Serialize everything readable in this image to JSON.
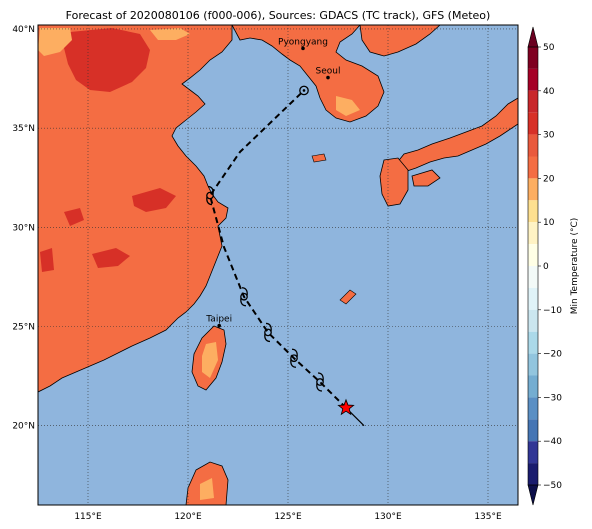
{
  "title": "Forecast of 2020080106 (f000-006), Sources: GDACS (TC track), GFS (Meteo)",
  "map": {
    "lon_range": [
      112.5,
      136.5
    ],
    "lat_range": [
      16.0,
      40.2
    ],
    "lon_ticks": [
      {
        "value": 115,
        "label": "115°E"
      },
      {
        "value": 120,
        "label": "120°E"
      },
      {
        "value": 125,
        "label": "125°E"
      },
      {
        "value": 130,
        "label": "130°E"
      },
      {
        "value": 135,
        "label": "135°E"
      }
    ],
    "lat_ticks": [
      {
        "value": 20,
        "label": "20°N"
      },
      {
        "value": 25,
        "label": "25°N"
      },
      {
        "value": 30,
        "label": "30°N"
      },
      {
        "value": 35,
        "label": "35°N"
      },
      {
        "value": 40,
        "label": "40°N"
      }
    ],
    "grid": true,
    "ocean_color": "#8fb5dd",
    "cities": [
      {
        "name": "Pyongyang",
        "lon": 125.75,
        "lat": 39.02
      },
      {
        "name": "Seoul",
        "lon": 127.0,
        "lat": 37.55
      },
      {
        "name": "Taipei",
        "lon": 121.56,
        "lat": 25.04
      }
    ],
    "track": {
      "current_position": {
        "lon": 127.9,
        "lat": 20.9
      },
      "past_segment_end": {
        "lon": 128.8,
        "lat": 20.0
      },
      "forecast_points": [
        {
          "lon": 127.9,
          "lat": 20.9
        },
        {
          "lon": 126.6,
          "lat": 22.2
        },
        {
          "lon": 125.3,
          "lat": 23.4
        },
        {
          "lon": 124.0,
          "lat": 24.7
        },
        {
          "lon": 122.8,
          "lat": 26.5
        },
        {
          "lon": 121.8,
          "lat": 29.0
        },
        {
          "lon": 121.1,
          "lat": 31.6
        },
        {
          "lon": 122.6,
          "lat": 33.8
        },
        {
          "lon": 125.8,
          "lat": 36.9
        }
      ],
      "storm_symbol_points": [
        {
          "lon": 126.6,
          "lat": 22.2
        },
        {
          "lon": 125.3,
          "lat": 23.4
        },
        {
          "lon": 124.0,
          "lat": 24.7
        },
        {
          "lon": 122.8,
          "lat": 26.5
        },
        {
          "lon": 121.1,
          "lat": 31.6
        }
      ],
      "depression_point": {
        "lon": 125.8,
        "lat": 36.9
      },
      "star_color": "#ff0000"
    }
  },
  "colorbar": {
    "label": "Min Temperature (°C)",
    "min": -50,
    "max": 50,
    "ticks": [
      {
        "value": 50,
        "label": "50"
      },
      {
        "value": 40,
        "label": "40"
      },
      {
        "value": 30,
        "label": "30"
      },
      {
        "value": 20,
        "label": "20"
      },
      {
        "value": 10,
        "label": "10"
      },
      {
        "value": 0,
        "label": "0"
      },
      {
        "value": -10,
        "label": "−10"
      },
      {
        "value": -20,
        "label": "−20"
      },
      {
        "value": -30,
        "label": "−30"
      },
      {
        "value": -40,
        "label": "−40"
      },
      {
        "value": -50,
        "label": "−50"
      }
    ],
    "bands": [
      {
        "from": 45,
        "to": 50,
        "color": "#7f0021"
      },
      {
        "from": 40,
        "to": 45,
        "color": "#a50026"
      },
      {
        "from": 35,
        "to": 40,
        "color": "#c8272b"
      },
      {
        "from": 30,
        "to": 35,
        "color": "#d73027"
      },
      {
        "from": 25,
        "to": 30,
        "color": "#e9593c"
      },
      {
        "from": 20,
        "to": 25,
        "color": "#f46d43"
      },
      {
        "from": 15,
        "to": 20,
        "color": "#fdae61"
      },
      {
        "from": 10,
        "to": 15,
        "color": "#fee090"
      },
      {
        "from": 5,
        "to": 10,
        "color": "#fff3c4"
      },
      {
        "from": 0,
        "to": 5,
        "color": "#ffffe6"
      },
      {
        "from": -5,
        "to": 0,
        "color": "#f3faf8"
      },
      {
        "from": -10,
        "to": -5,
        "color": "#e0f3f8"
      },
      {
        "from": -15,
        "to": -10,
        "color": "#cbe6ef"
      },
      {
        "from": -20,
        "to": -15,
        "color": "#abd9e9"
      },
      {
        "from": -25,
        "to": -20,
        "color": "#92c5de"
      },
      {
        "from": -30,
        "to": -25,
        "color": "#74add1"
      },
      {
        "from": -35,
        "to": -30,
        "color": "#5a8fc4"
      },
      {
        "from": -40,
        "to": -35,
        "color": "#4575b4"
      },
      {
        "from": -45,
        "to": -40,
        "color": "#313695"
      },
      {
        "from": -50,
        "to": -45,
        "color": "#1a1c6e"
      }
    ],
    "over_color": "#6a0020",
    "under_color": "#0d0f4a"
  }
}
